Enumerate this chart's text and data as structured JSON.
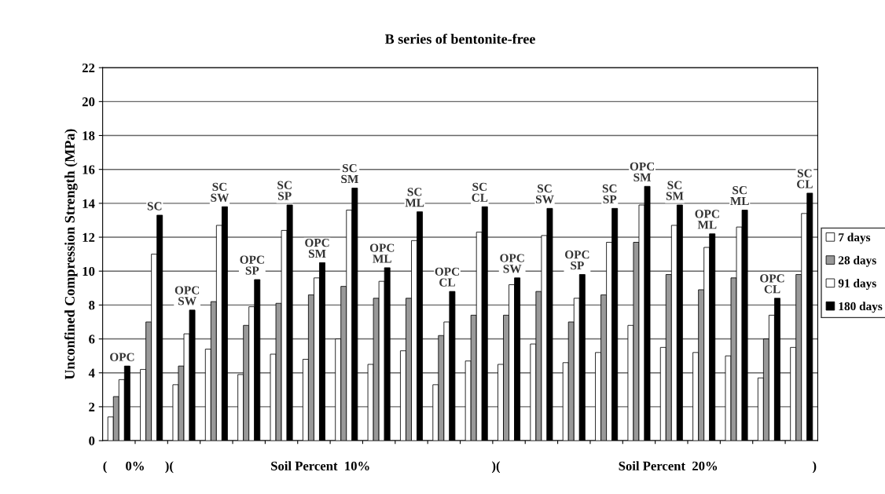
{
  "chart_data": {
    "type": "bar",
    "title": "B series of bentonite-free",
    "ylabel": "Unconfined Compression Strength (MPa)",
    "categories": [
      "OPC",
      "SC",
      "OPC\nSW",
      "SC\nSW",
      "OPC\nSP",
      "SC\nSP",
      "OPC\nSM",
      "SC\nSM",
      "OPC\nML",
      "SC\nML",
      "OPC\nCL",
      "SC\nCL",
      "OPC\nSW",
      "SC\nSW",
      "OPC\nSP",
      "SC\nSP",
      "OPC\nSM",
      "SC\nSM",
      "OPC\nML",
      "SC\nML",
      "OPC\nCL",
      "SC\nCL"
    ],
    "series": [
      {
        "name": "7 days",
        "color": "#ffffff",
        "values": [
          1.4,
          4.2,
          3.3,
          5.4,
          3.9,
          5.1,
          4.8,
          6.0,
          4.5,
          5.3,
          3.3,
          4.7,
          4.5,
          5.7,
          4.6,
          5.2,
          6.8,
          5.5,
          5.2,
          5.0,
          3.7,
          5.5
        ]
      },
      {
        "name": "28 days",
        "color": "#999999",
        "values": [
          2.6,
          7.0,
          4.4,
          8.2,
          6.8,
          8.1,
          8.6,
          9.1,
          8.4,
          8.4,
          6.2,
          7.4,
          7.4,
          8.8,
          7.0,
          8.6,
          11.7,
          9.8,
          8.9,
          9.6,
          6.0,
          9.8
        ]
      },
      {
        "name": "91 days",
        "color": "#ffffff",
        "values": [
          3.6,
          11.0,
          6.3,
          12.7,
          7.9,
          12.4,
          9.6,
          13.6,
          9.4,
          11.8,
          7.0,
          12.3,
          9.2,
          12.1,
          8.4,
          11.7,
          13.9,
          12.7,
          11.4,
          12.6,
          7.4,
          13.4
        ]
      },
      {
        "name": "180 days",
        "color": "#000000",
        "values": [
          4.4,
          13.3,
          7.7,
          13.8,
          9.5,
          13.9,
          10.5,
          14.9,
          10.2,
          13.5,
          8.8,
          13.8,
          9.6,
          13.7,
          9.8,
          13.7,
          15.0,
          13.9,
          12.2,
          13.6,
          8.4,
          14.6
        ]
      }
    ],
    "ylim": [
      0,
      22
    ],
    "yticks": [
      0,
      2,
      4,
      6,
      8,
      10,
      12,
      14,
      16,
      18,
      20,
      22
    ],
    "grid": "y",
    "legend": "right",
    "annotations": [
      "(",
      "0%",
      ")(",
      "Soil Percent  10%",
      ")(",
      "Soil Percent  20%",
      ")"
    ]
  }
}
